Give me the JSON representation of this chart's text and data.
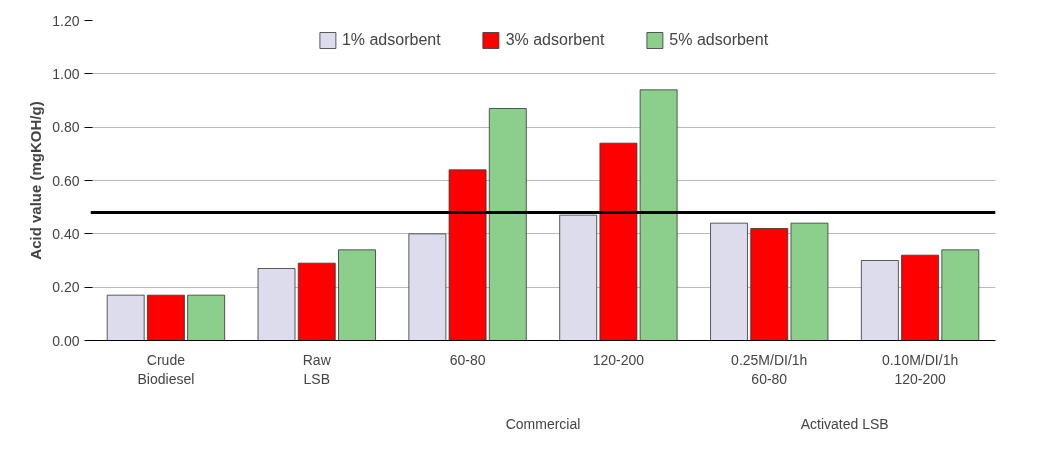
{
  "chart_data": {
    "type": "bar",
    "ylabel": "Acid value (mgKOH/g)",
    "categories": [
      "Crude\nBiodiesel",
      "Raw\nLSB",
      "60-80",
      "120-200",
      "0.25M/DI/1h\n60-80",
      "0.10M/DI/1h\n120-200"
    ],
    "series": [
      {
        "name": "1% adsorbent",
        "color": "#dcdcec",
        "values": [
          0.17,
          0.27,
          0.4,
          0.47,
          0.44,
          0.3
        ]
      },
      {
        "name": "3% adsorbent",
        "color": "#ff0000",
        "values": [
          0.17,
          0.29,
          0.64,
          0.74,
          0.42,
          0.32
        ]
      },
      {
        "name": "5% adsorbent",
        "color": "#8ccf8c",
        "values": [
          0.17,
          0.34,
          0.87,
          0.94,
          0.44,
          0.34
        ]
      }
    ],
    "ylim": [
      0,
      1.2
    ],
    "yticks": [
      {
        "value": 0,
        "label": "0.00"
      },
      {
        "value": 0.2,
        "label": "0.20"
      },
      {
        "value": 0.4,
        "label": "0.40"
      },
      {
        "value": 0.6,
        "label": "0.60"
      },
      {
        "value": 0.8,
        "label": "0.80"
      },
      {
        "value": 1.0,
        "label": "1.00"
      },
      {
        "value": 1.2,
        "label": "1.20"
      }
    ],
    "ref_lines": [
      {
        "axis": "y",
        "value": 0.48,
        "color": "#000000"
      }
    ],
    "annotations": [
      "Commercial",
      "Activated LSB"
    ],
    "grid": "y",
    "legend": "top"
  }
}
